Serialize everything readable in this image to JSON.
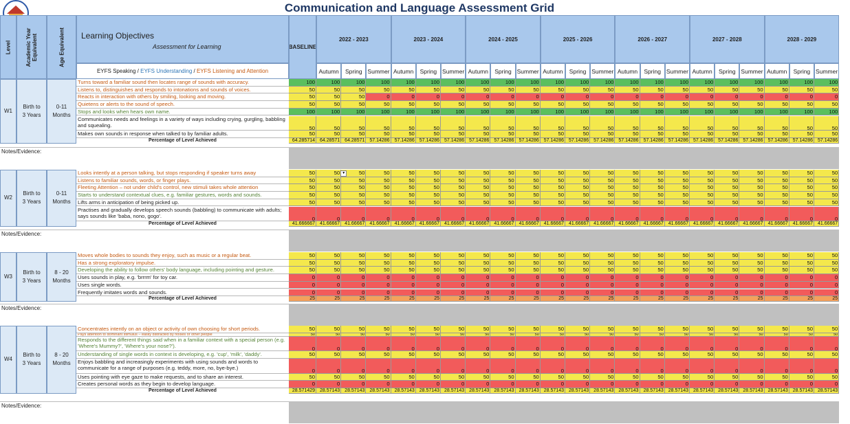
{
  "title": "Communication and Language Assessment Grid",
  "header": {
    "level": "Level",
    "academic_year": "Academic Year Equivalent",
    "age_equiv": "Age Equivalent",
    "learning_objectives": "Learning Objectives",
    "afl": "Assessment for Learning",
    "eyfs_speaking": "EYFS Speaking",
    "eyfs_understanding": "EYFS Understanding",
    "eyfs_listening": "EYFS Listening and Attention",
    "sep": " / ",
    "baseline": "BASELINE",
    "years": [
      "2022 - 2023",
      "2023 - 2024",
      "2024 - 2025",
      "2025 - 2026",
      "2026 - 2027",
      "2027 - 2028",
      "2028 - 2029"
    ],
    "terms": [
      "Autumn",
      "Spring",
      "Summer"
    ]
  },
  "notes_label": "Notes/Evidence:",
  "pct_label": "Percentage of Level Achieved",
  "colors": {
    "green": "#5bbf5e",
    "yellow": "#f4e84c",
    "red": "#f25b5b",
    "orange": "#f4a15c",
    "header": "#dce9f6",
    "gray": "#c0c0c0"
  },
  "blocks": [
    {
      "level": "W1",
      "year": "Birth to 3 Years",
      "age": "0-11 Months",
      "objectives": [
        {
          "text": "Turns toward a familiar sound then locates range of sounds with accuracy.",
          "color": "orange",
          "h": 1,
          "baseline": "100",
          "vals": [
            "100",
            "100",
            "100",
            "100",
            "100",
            "100",
            "100",
            "100",
            "100",
            "100",
            "100",
            "100",
            "100",
            "100",
            "100",
            "100",
            "100",
            "100",
            "100",
            "100",
            "100"
          ]
        },
        {
          "text": "Listens to, distinguishes and responds to intonations and sounds of voices.",
          "color": "orange",
          "h": 1,
          "baseline": "50",
          "vals": [
            "50",
            "50",
            "50",
            "50",
            "50",
            "50",
            "50",
            "50",
            "50",
            "50",
            "50",
            "50",
            "50",
            "50",
            "50",
            "50",
            "50",
            "50",
            "50",
            "50",
            "50"
          ]
        },
        {
          "text": "Reacts in interaction with others by smiling, looking and moving.",
          "color": "orange",
          "h": 1,
          "baseline": "50",
          "vals": [
            "50",
            "50",
            "0",
            "0",
            "0",
            "0",
            "0",
            "0",
            "0",
            "0",
            "0",
            "0",
            "0",
            "0",
            "0",
            "0",
            "0",
            "0",
            "0",
            "0",
            "0"
          ]
        },
        {
          "text": "Quietens or alerts to the sound of speech.",
          "color": "orange",
          "h": 1,
          "baseline": "50",
          "vals": [
            "50",
            "50",
            "50",
            "50",
            "50",
            "50",
            "50",
            "50",
            "50",
            "50",
            "50",
            "50",
            "50",
            "50",
            "50",
            "50",
            "50",
            "50",
            "50",
            "50",
            "50"
          ]
        },
        {
          "text": "Stops and looks when hears own name.",
          "color": "green",
          "h": 1,
          "baseline": "100",
          "vals": [
            "100",
            "100",
            "100",
            "100",
            "100",
            "100",
            "100",
            "100",
            "100",
            "100",
            "100",
            "100",
            "100",
            "100",
            "100",
            "100",
            "100",
            "100",
            "100",
            "100",
            "100"
          ]
        },
        {
          "text": "Communicates needs and feelings in a variety of ways including crying, gurgling, babbling and squealing.",
          "color": "black",
          "h": 2,
          "baseline": "50",
          "vals": [
            "50",
            "50",
            "50",
            "50",
            "50",
            "50",
            "50",
            "50",
            "50",
            "50",
            "50",
            "50",
            "50",
            "50",
            "50",
            "50",
            "50",
            "50",
            "50",
            "50",
            "50"
          ]
        },
        {
          "text": "Makes own sounds in response when talked to by familiar adults.",
          "color": "black",
          "h": 1,
          "baseline": "50",
          "vals": [
            "50",
            "50",
            "50",
            "50",
            "50",
            "50",
            "50",
            "50",
            "50",
            "50",
            "50",
            "50",
            "50",
            "50",
            "50",
            "50",
            "50",
            "50",
            "50",
            "50",
            "50"
          ]
        }
      ],
      "pct": {
        "baseline": "64.285714",
        "vals": [
          "64.28571",
          "64.28571",
          "57.14286",
          "57.14286",
          "57.14286",
          "57.14286",
          "57.14286",
          "57.14286",
          "57.14286",
          "57.14286",
          "57.14286",
          "57.14286",
          "57.14286",
          "57.14286",
          "57.14286",
          "57.14286",
          "57.14286",
          "57.14286",
          "57.14286",
          "57.14286",
          "57.14286"
        ],
        "color": "yellow"
      }
    },
    {
      "level": "W2",
      "year": "Birth to 3 Years",
      "age": "0-11 Months",
      "objectives": [
        {
          "text": "Looks intently at a person talking, but stops responding if speaker turns away",
          "color": "orange",
          "h": 1,
          "baseline": "50",
          "vals": [
            "50",
            "50",
            "50",
            "50",
            "50",
            "50",
            "50",
            "50",
            "50",
            "50",
            "50",
            "50",
            "50",
            "50",
            "50",
            "50",
            "50",
            "50",
            "50",
            "50",
            "50"
          ]
        },
        {
          "text": "Listens to familiar sounds, words, or finger plays.",
          "color": "orange",
          "h": 1,
          "baseline": "50",
          "vals": [
            "50",
            "50",
            "50",
            "50",
            "50",
            "50",
            "50",
            "50",
            "50",
            "50",
            "50",
            "50",
            "50",
            "50",
            "50",
            "50",
            "50",
            "50",
            "50",
            "50",
            "50"
          ]
        },
        {
          "text": "Fleeting Attention – not under child's control, new stimuli takes whole attention",
          "color": "orange",
          "h": 1,
          "baseline": "50",
          "vals": [
            "50",
            "50",
            "50",
            "50",
            "50",
            "50",
            "50",
            "50",
            "50",
            "50",
            "50",
            "50",
            "50",
            "50",
            "50",
            "50",
            "50",
            "50",
            "50",
            "50",
            "50"
          ]
        },
        {
          "text": "Starts to understand contextual clues, e.g. familiar gestures, words and sounds.",
          "color": "green",
          "h": 1,
          "baseline": "50",
          "vals": [
            "50",
            "50",
            "50",
            "50",
            "50",
            "50",
            "50",
            "50",
            "50",
            "50",
            "50",
            "50",
            "50",
            "50",
            "50",
            "50",
            "50",
            "50",
            "50",
            "50",
            "50"
          ]
        },
        {
          "text": "Lifts arms in anticipation of being picked up.",
          "color": "black",
          "h": 1,
          "baseline": "50",
          "vals": [
            "50",
            "50",
            "50",
            "50",
            "50",
            "50",
            "50",
            "50",
            "50",
            "50",
            "50",
            "50",
            "50",
            "50",
            "50",
            "50",
            "50",
            "50",
            "50",
            "50",
            "50"
          ]
        },
        {
          "text": "Practises and gradually develops speech sounds (babbling) to communicate with adults; says sounds like 'baba, nono, gogo'.",
          "color": "black",
          "h": 2,
          "baseline": "0",
          "vals": [
            "0",
            "0",
            "0",
            "0",
            "0",
            "0",
            "0",
            "0",
            "0",
            "0",
            "0",
            "0",
            "0",
            "0",
            "0",
            "0",
            "0",
            "0",
            "0",
            "0",
            "0"
          ]
        }
      ],
      "pct": {
        "baseline": "41.666667",
        "vals": [
          "41.66667",
          "41.66667",
          "41.66667",
          "41.66667",
          "41.66667",
          "41.66667",
          "41.66667",
          "41.66667",
          "41.66667",
          "41.66667",
          "41.66667",
          "41.66667",
          "41.66667",
          "41.66667",
          "41.66667",
          "41.66667",
          "41.66667",
          "41.66667",
          "41.66667",
          "41.66667",
          "41.66667"
        ],
        "color": "yellow"
      }
    },
    {
      "level": "W3",
      "year": "Birth to 3 Years",
      "age": "8 - 20 Months",
      "objectives": [
        {
          "text": "Moves whole bodies to sounds they enjoy, such as music or a regular beat.",
          "color": "orange",
          "h": 1,
          "baseline": "50",
          "vals": [
            "50",
            "50",
            "50",
            "50",
            "50",
            "50",
            "50",
            "50",
            "50",
            "50",
            "50",
            "50",
            "50",
            "50",
            "50",
            "50",
            "50",
            "50",
            "50",
            "50",
            "50"
          ]
        },
        {
          "text": "Has a strong exploratory impulse.",
          "color": "orange",
          "h": 1,
          "baseline": "50",
          "vals": [
            "50",
            "50",
            "50",
            "50",
            "50",
            "50",
            "50",
            "50",
            "50",
            "50",
            "50",
            "50",
            "50",
            "50",
            "50",
            "50",
            "50",
            "50",
            "50",
            "50",
            "50"
          ]
        },
        {
          "text": "Developing the ability to follow others' body language, including pointing and gesture.",
          "color": "green",
          "h": 1,
          "baseline": "50",
          "vals": [
            "50",
            "50",
            "50",
            "50",
            "50",
            "50",
            "50",
            "50",
            "50",
            "50",
            "50",
            "50",
            "50",
            "50",
            "50",
            "50",
            "50",
            "50",
            "50",
            "50",
            "50"
          ]
        },
        {
          "text": "Uses sounds in play, e.g. 'brrrm' for toy car.",
          "color": "black",
          "h": 1,
          "baseline": "0",
          "vals": [
            "0",
            "0",
            "0",
            "0",
            "0",
            "0",
            "0",
            "0",
            "0",
            "0",
            "0",
            "0",
            "0",
            "0",
            "0",
            "0",
            "0",
            "0",
            "0",
            "0",
            "0"
          ]
        },
        {
          "text": "Uses single words.",
          "color": "black",
          "h": 1,
          "baseline": "0",
          "vals": [
            "0",
            "0",
            "0",
            "0",
            "0",
            "0",
            "0",
            "0",
            "0",
            "0",
            "0",
            "0",
            "0",
            "0",
            "0",
            "0",
            "0",
            "0",
            "0",
            "0",
            "0"
          ]
        },
        {
          "text": "Frequently imitates words and sounds.",
          "color": "black",
          "h": 1,
          "baseline": "0",
          "vals": [
            "0",
            "0",
            "0",
            "0",
            "0",
            "0",
            "0",
            "0",
            "0",
            "0",
            "0",
            "0",
            "0",
            "0",
            "0",
            "0",
            "0",
            "0",
            "0",
            "0",
            "0"
          ]
        }
      ],
      "pct": {
        "baseline": "25",
        "vals": [
          "25",
          "25",
          "25",
          "25",
          "25",
          "25",
          "25",
          "25",
          "25",
          "25",
          "25",
          "25",
          "25",
          "25",
          "25",
          "25",
          "25",
          "25",
          "25",
          "25",
          "25"
        ],
        "color": "orange"
      }
    },
    {
      "level": "W4",
      "year": "Birth to 3 Years",
      "age": "8 - 20 Months",
      "objectives": [
        {
          "text": "Concentrates intently on an object or activity of own choosing for short periods.",
          "color": "orange",
          "h": 1,
          "baseline": "50",
          "vals": [
            "50",
            "50",
            "50",
            "50",
            "50",
            "50",
            "50",
            "50",
            "50",
            "50",
            "50",
            "50",
            "50",
            "50",
            "50",
            "50",
            "50",
            "50",
            "50",
            "50",
            "50"
          ]
        },
        {
          "text": "Pays attention to dominant stimulus – easily distracted by noises or other people",
          "color": "orange",
          "h": 0.5,
          "baseline": "50",
          "vals": [
            "50",
            "50",
            "50",
            "50",
            "50",
            "50",
            "50",
            "50",
            "50",
            "50",
            "50",
            "50",
            "50",
            "50",
            "50",
            "50",
            "50",
            "50",
            "50",
            "50",
            "50"
          ]
        },
        {
          "text": "Responds to the different things said when in a familiar context with a special person (e.g. 'Where's Mummy?', 'Where's your nose?').",
          "color": "green",
          "h": 2,
          "baseline": "0",
          "vals": [
            "0",
            "0",
            "0",
            "0",
            "0",
            "0",
            "0",
            "0",
            "0",
            "0",
            "0",
            "0",
            "0",
            "0",
            "0",
            "0",
            "0",
            "0",
            "0",
            "0",
            "0"
          ]
        },
        {
          "text": "Understanding of single words in context is developing, e.g. 'cup', 'milk', 'daddy'.",
          "color": "green",
          "h": 1,
          "baseline": "50",
          "vals": [
            "50",
            "50",
            "50",
            "50",
            "50",
            "50",
            "50",
            "50",
            "50",
            "50",
            "50",
            "50",
            "50",
            "50",
            "50",
            "50",
            "50",
            "50",
            "50",
            "50",
            "50"
          ]
        },
        {
          "text": "Enjoys babbling and increasingly experiments with using sounds and words to communicate for a range of purposes (e.g. teddy, more, no, bye-bye.)",
          "color": "black",
          "h": 2,
          "baseline": "0",
          "vals": [
            "0",
            "0",
            "0",
            "0",
            "0",
            "0",
            "0",
            "0",
            "0",
            "0",
            "0",
            "0",
            "0",
            "0",
            "0",
            "0",
            "0",
            "0",
            "0",
            "0",
            "0"
          ]
        },
        {
          "text": "Uses pointing with eye gaze to make requests, and to share an interest.",
          "color": "black",
          "h": 1,
          "baseline": "50",
          "vals": [
            "50",
            "50",
            "50",
            "50",
            "50",
            "50",
            "50",
            "50",
            "50",
            "50",
            "50",
            "50",
            "50",
            "50",
            "50",
            "50",
            "50",
            "50",
            "50",
            "50",
            "50"
          ]
        },
        {
          "text": "Creates personal words as they begin to develop language.",
          "color": "black",
          "h": 1,
          "baseline": "0",
          "vals": [
            "0",
            "0",
            "0",
            "0",
            "0",
            "0",
            "0",
            "0",
            "0",
            "0",
            "0",
            "0",
            "0",
            "0",
            "0",
            "0",
            "0",
            "0",
            "0",
            "0",
            "0"
          ]
        }
      ],
      "pct": {
        "baseline": "28.571429",
        "vals": [
          "28.57143",
          "28.57143",
          "28.57143",
          "28.57143",
          "28.57143",
          "28.57143",
          "28.57143",
          "28.57143",
          "28.57143",
          "28.57143",
          "28.57143",
          "28.57143",
          "28.57143",
          "28.57143",
          "28.57143",
          "28.57143",
          "28.57143",
          "28.57143",
          "28.57143",
          "28.57143",
          "28.57143"
        ],
        "color": "yellow"
      }
    }
  ]
}
